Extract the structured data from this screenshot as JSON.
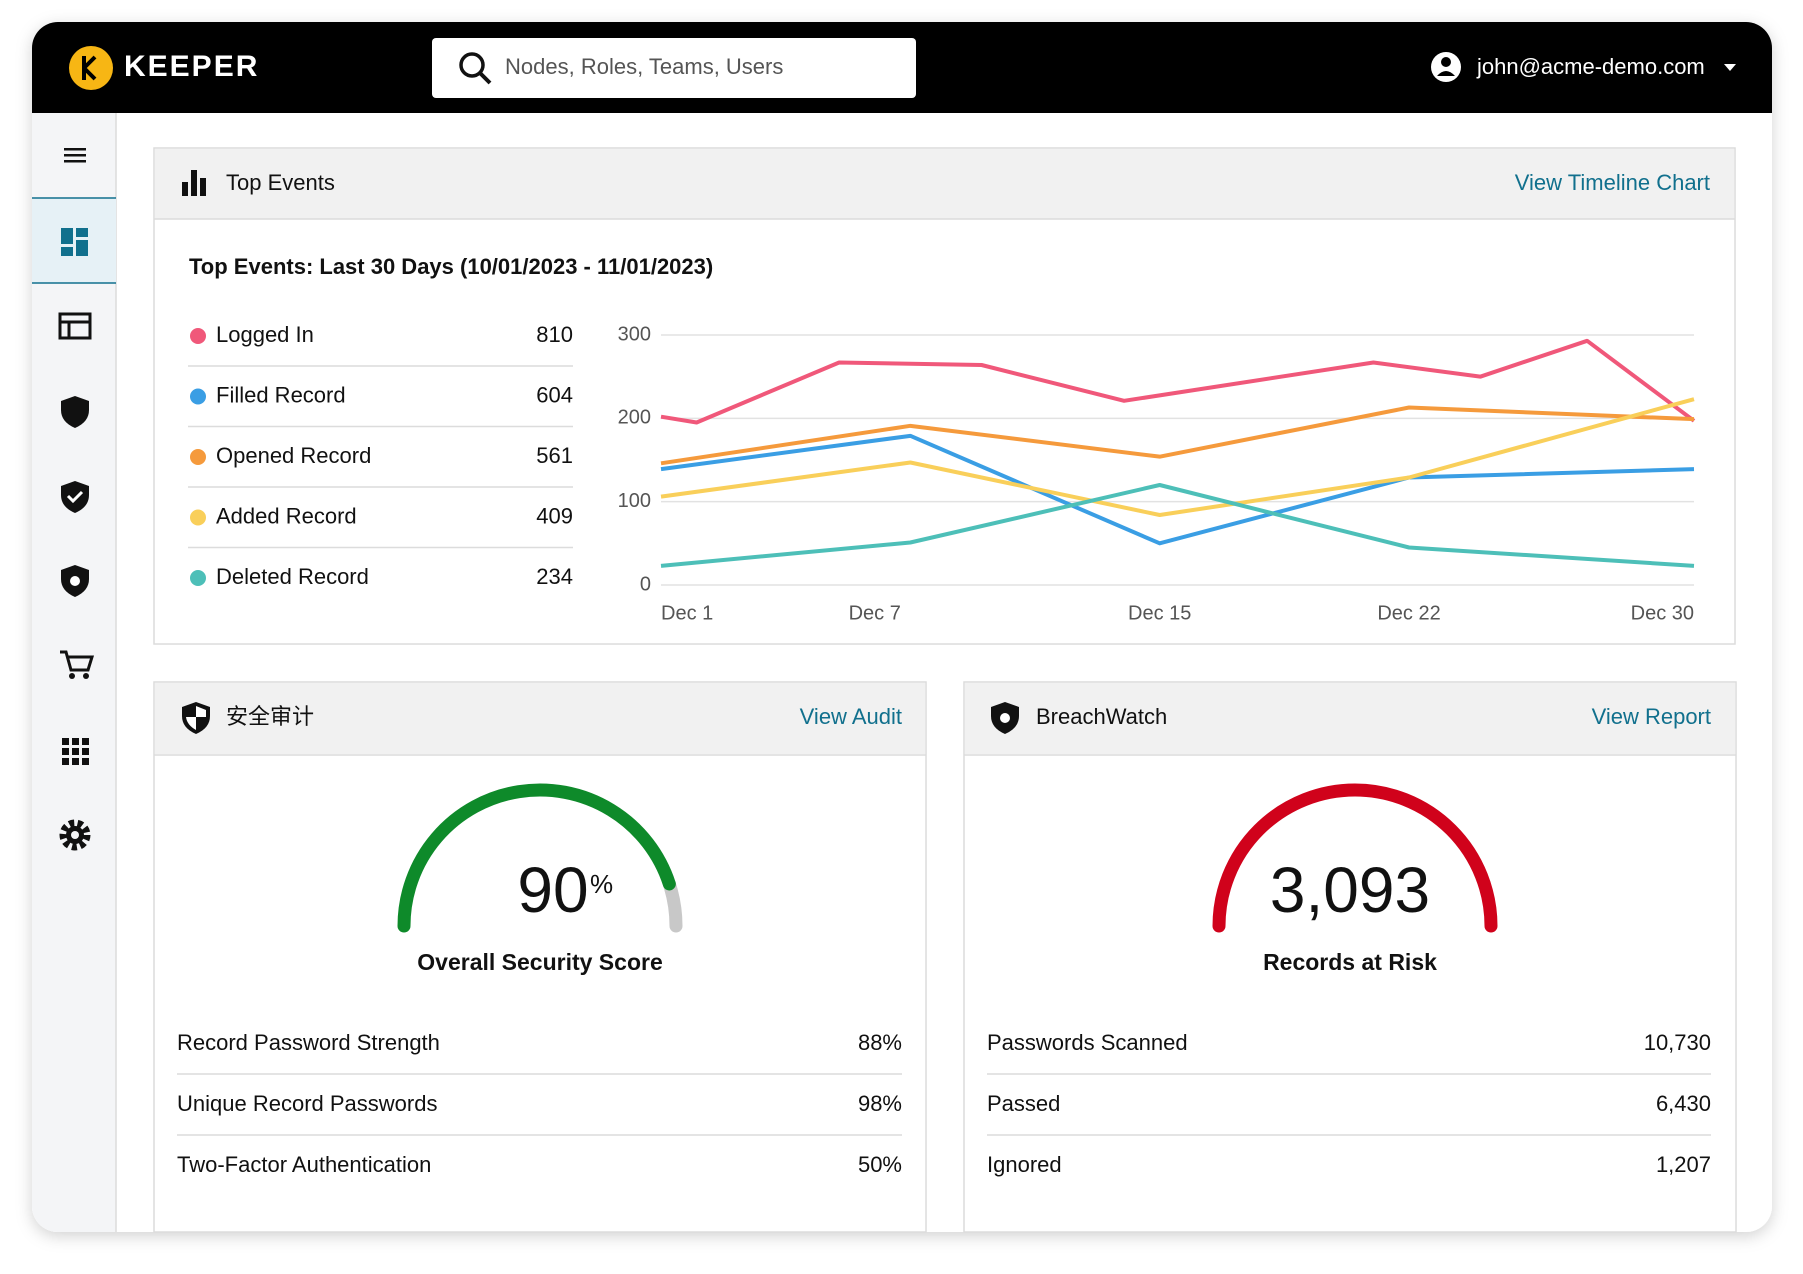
{
  "header": {
    "brand": "KEEPER",
    "search_placeholder": "Nodes, Roles, Teams, Users",
    "user": "john@acme-demo.com"
  },
  "top_events": {
    "title": "Top Events",
    "link": "View Timeline Chart",
    "chart_data": {
      "type": "line",
      "subtitle": "Top Events: Last 30 Days (10/01/2023 - 11/01/2023)",
      "xlim": [
        1,
        30
      ],
      "xticks": [
        {
          "value": 1,
          "label": "Dec 1"
        },
        {
          "value": 7,
          "label": "Dec 7"
        },
        {
          "value": 15,
          "label": "Dec 15"
        },
        {
          "value": 22,
          "label": "Dec 22"
        },
        {
          "value": 30,
          "label": "Dec 30"
        }
      ],
      "ylim": [
        0,
        300
      ],
      "yticks": [
        0,
        100,
        200,
        300
      ],
      "grid": true,
      "series": [
        {
          "name": "Logged In",
          "color": "#f0587a",
          "total": 810,
          "x": [
            1,
            2,
            6,
            10,
            14,
            21,
            24,
            27,
            30
          ],
          "values": [
            202,
            195,
            267,
            264,
            221,
            267,
            250,
            293,
            197
          ]
        },
        {
          "name": "Filled Record",
          "color": "#3a9ee4",
          "total": 604,
          "x": [
            1,
            8,
            15,
            22,
            30
          ],
          "values": [
            139,
            179,
            50,
            129,
            139
          ]
        },
        {
          "name": "Opened Record",
          "color": "#f59a3c",
          "total": 561,
          "x": [
            1,
            8,
            15,
            22,
            30
          ],
          "values": [
            146,
            191,
            154,
            213,
            199
          ]
        },
        {
          "name": "Added Record",
          "color": "#f9cf5a",
          "total": 409,
          "x": [
            1,
            8,
            15,
            22,
            30
          ],
          "values": [
            106,
            147,
            84,
            129,
            223
          ]
        },
        {
          "name": "Deleted Record",
          "color": "#4dbfb8",
          "total": 234,
          "x": [
            1,
            8,
            15,
            22,
            30
          ],
          "values": [
            23,
            51,
            120,
            45,
            23
          ]
        }
      ]
    }
  },
  "security_audit": {
    "title": "安全审计",
    "link": "View Audit",
    "score": {
      "value": 90,
      "unit": "%"
    },
    "score_label": "Overall Security Score",
    "rows": [
      [
        "Record Password Strength",
        "88%"
      ],
      [
        "Unique Record Passwords",
        "98%"
      ],
      [
        "Two-Factor Authentication",
        "50%"
      ]
    ]
  },
  "breachwatch": {
    "title": "BreachWatch",
    "link": "View Report",
    "count": "3,093",
    "count_label": "Records at Risk",
    "rows": [
      [
        "Passwords Scanned",
        "10,730"
      ],
      [
        "Passed",
        "6,430"
      ],
      [
        "Ignored",
        "1,207"
      ]
    ]
  }
}
